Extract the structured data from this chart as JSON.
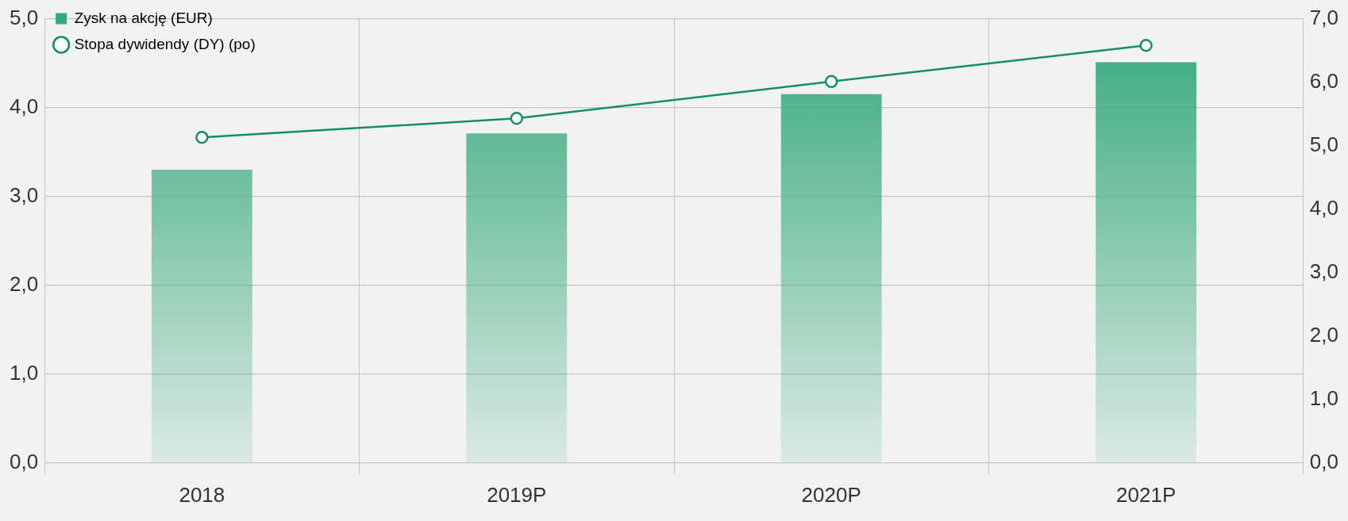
{
  "chart_data": {
    "type": "bar",
    "categories": [
      "2018",
      "2019P",
      "2020P",
      "2021P"
    ],
    "series": [
      {
        "name": "Zysk na akcję (EUR)",
        "color": "#34a97a",
        "values": [
          3.3,
          3.71,
          4.15,
          4.51
        ]
      },
      {
        "name": "Stopa dywidendy (DY) (po)",
        "type": "line",
        "axis": "y2",
        "color": "#14915a",
        "values": [
          5.13,
          5.43,
          6.01,
          6.58
        ]
      }
    ],
    "ylim": [
      0,
      5
    ],
    "yticks": [
      {
        "value": 0,
        "label": "0,0"
      },
      {
        "value": 1,
        "label": "1,0"
      },
      {
        "value": 2,
        "label": "2,0"
      },
      {
        "value": 3,
        "label": "3,0"
      },
      {
        "value": 4,
        "label": "4,0"
      },
      {
        "value": 5,
        "label": "5,0"
      }
    ],
    "y2lim": [
      0,
      7
    ],
    "y2ticks": [
      {
        "value": 0,
        "label": "0,0"
      },
      {
        "value": 1,
        "label": "1,0"
      },
      {
        "value": 2,
        "label": "2,0"
      },
      {
        "value": 3,
        "label": "3,0"
      },
      {
        "value": 4,
        "label": "4,0"
      },
      {
        "value": 5,
        "label": "5,0"
      },
      {
        "value": 6,
        "label": "6,0"
      },
      {
        "value": 7,
        "label": "7,0"
      }
    ],
    "grid": true,
    "legend": "top left",
    "marker": "circle",
    "line_style": "solid"
  }
}
